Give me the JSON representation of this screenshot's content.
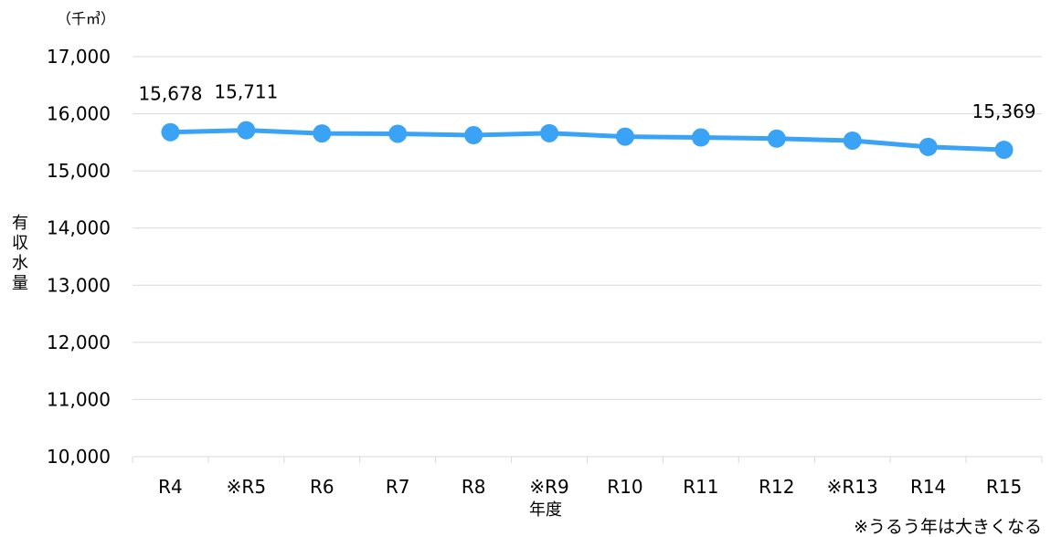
{
  "chart_data": {
    "type": "line",
    "unit_label": "（千㎥）",
    "xlabel": "年度",
    "ylabel": "有収水量",
    "categories": [
      "R4",
      "※R5",
      "R6",
      "R7",
      "R8",
      "※R9",
      "R10",
      "R11",
      "R12",
      "※R13",
      "R14",
      "R15"
    ],
    "series": [
      {
        "values": [
          15678,
          15711,
          15656,
          15650,
          15625,
          15660,
          15600,
          15585,
          15565,
          15530,
          15420,
          15369
        ]
      }
    ],
    "data_labels": [
      {
        "index": 0,
        "text": "15,678"
      },
      {
        "index": 1,
        "text": "15,711"
      },
      {
        "index": 11,
        "text": "15,369"
      }
    ],
    "ylim": [
      10000,
      17000
    ],
    "yticks": [
      10000,
      11000,
      12000,
      13000,
      14000,
      15000,
      16000,
      17000
    ],
    "ytick_labels": [
      "10,000",
      "11,000",
      "12,000",
      "13,000",
      "14,000",
      "15,000",
      "16,000",
      "17,000"
    ],
    "grid": true,
    "line_color": "#3AA3F5",
    "grid_color": "#D9D9D9",
    "note": "※うるう年は大きくなる"
  }
}
